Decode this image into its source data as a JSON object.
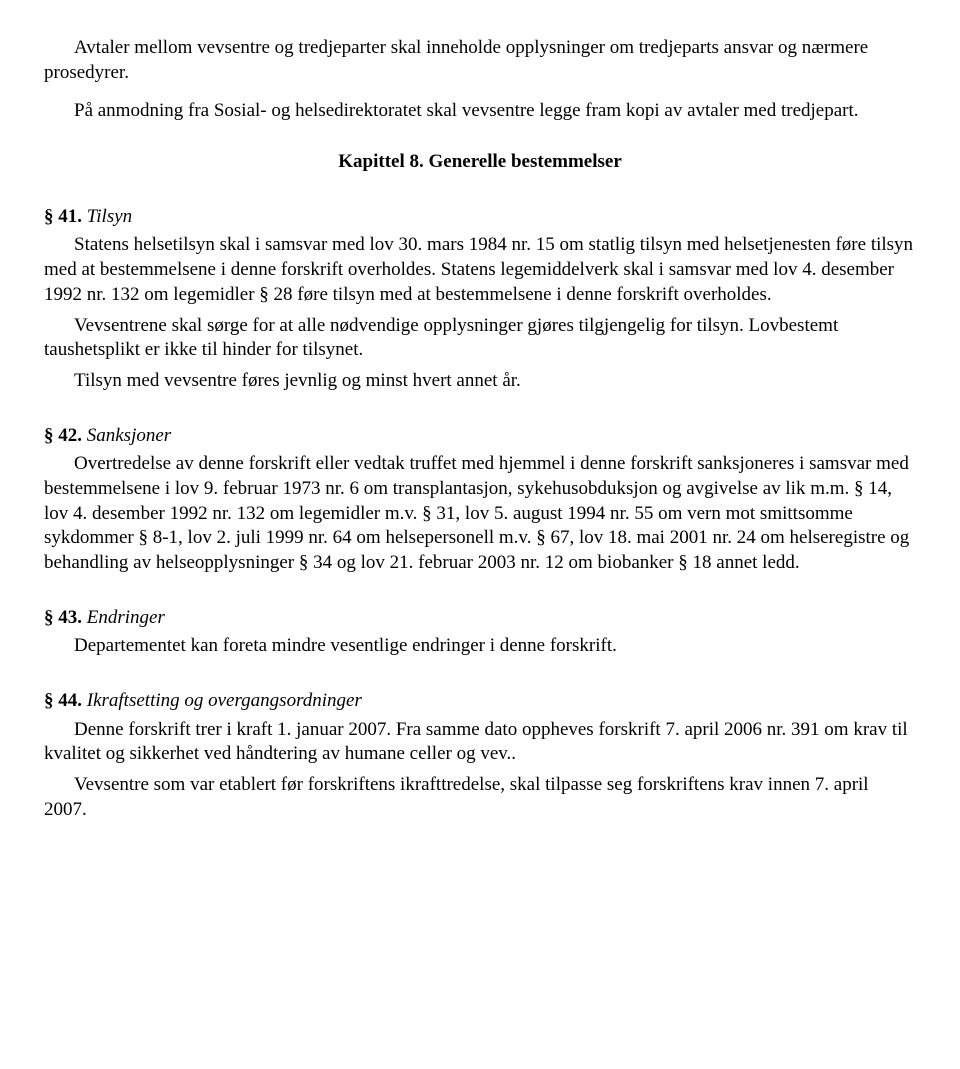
{
  "intro": {
    "p1": "Avtaler mellom vevsentre og tredjeparter skal inneholde opplysninger om tredjeparts ansvar og nærmere prosedyrer.",
    "p2": "På anmodning fra Sosial- og helsedirektoratet skal vevsentre legge fram kopi av avtaler med tredjepart."
  },
  "chapter": {
    "heading": "Kapittel 8. Generelle bestemmelser"
  },
  "s41": {
    "num": "§ 41.",
    "title": "Tilsyn",
    "body1": "Statens helsetilsyn skal i samsvar med lov 30. mars 1984 nr. 15 om statlig tilsyn med helsetjenesten føre tilsyn med at bestemmelsene i denne forskrift overholdes. Statens legemiddelverk skal i samsvar med lov 4. desember 1992 nr. 132 om legemidler § 28 føre tilsyn med at bestemmelsene i denne forskrift overholdes.",
    "body2": "Vevsentrene skal sørge for at alle nødvendige opplysninger gjøres tilgjengelig for tilsyn. Lovbestemt taushetsplikt er ikke til hinder for tilsynet.",
    "body3": "Tilsyn med vevsentre føres jevnlig og minst hvert annet år."
  },
  "s42": {
    "num": "§ 42.",
    "title": "Sanksjoner",
    "body": "Overtredelse av denne forskrift eller vedtak truffet med hjemmel i denne forskrift sanksjoneres i samsvar med bestemmelsene i lov 9. februar 1973 nr. 6 om transplantasjon, sykehusobduksjon og avgivelse av lik m.m. § 14, lov 4. desember 1992 nr. 132 om legemidler m.v. § 31, lov 5. august 1994 nr. 55 om vern mot smittsomme sykdommer § 8-1, lov 2. juli 1999 nr. 64 om helsepersonell m.v. § 67, lov 18. mai 2001 nr. 24 om helseregistre og behandling av helseopplysninger § 34 og lov 21. februar 2003 nr. 12 om biobanker § 18 annet ledd."
  },
  "s43": {
    "num": "§ 43.",
    "title": "Endringer",
    "body": "Departementet kan foreta mindre vesentlige endringer i denne forskrift."
  },
  "s44": {
    "num": "§ 44.",
    "title": "Ikraftsetting og overgangsordninger",
    "body1": "Denne forskrift trer i kraft 1. januar 2007. Fra samme dato oppheves forskrift 7. april 2006 nr. 391 om krav til kvalitet og sikkerhet ved håndtering av humane celler og vev..",
    "body2": "Vevsentre som var etablert før forskriftens ikrafttredelse, skal tilpasse seg forskriftens krav innen 7. april 2007."
  }
}
